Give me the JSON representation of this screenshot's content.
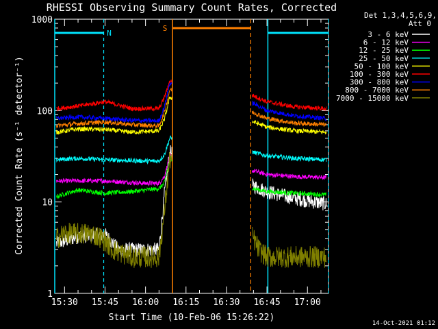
{
  "chart_data": {
    "type": "line",
    "title": "RHESSI Observing Summary Count Rates, Corrected",
    "xlabel": "Start Time (10-Feb-06 15:26:22)",
    "ylabel": "Corrected Count Rate (s⁻¹ detector⁻¹)",
    "footer": "14-Oct-2021 01:12",
    "log_y": true,
    "ylim": [
      1,
      1000
    ],
    "xlim_minutes": [
      15.43,
      17.13
    ],
    "xlim": [
      "15:26:22",
      "17:07:48"
    ],
    "x_ticks": [
      "15:30",
      "15:45",
      "16:00",
      "16:15",
      "16:30",
      "16:45",
      "17:00"
    ],
    "y_ticks": [
      "1",
      "10",
      "100",
      "1000"
    ],
    "legend": {
      "header": [
        "Det 1,3,4,5,6,9,",
        "Att 0"
      ],
      "position": "top-right"
    },
    "markers": {
      "N_label": "N",
      "S_label": "S",
      "n_color": "#00e5ff",
      "s_color": "#ff8000"
    },
    "night_intervals": [
      [
        "15:26:22",
        "15:44:30"
      ],
      [
        "16:45:20",
        "17:07:48"
      ]
    ],
    "saa_interval": [
      "16:10:00",
      "16:39:00"
    ],
    "gaps": [
      [
        "16:09:50",
        "16:39:30"
      ]
    ],
    "series": [
      {
        "name": "3 - 6 keV",
        "color": "#ffffff",
        "points": [
          [
            "15:27",
            3.5
          ],
          [
            "15:35",
            4.2
          ],
          [
            "15:45",
            4.4
          ],
          [
            "15:50",
            3
          ],
          [
            "16:00",
            3
          ],
          [
            "16:05",
            3
          ],
          [
            "16:07",
            12
          ],
          [
            "16:09",
            35
          ],
          [
            "16:40",
            15
          ],
          [
            "16:45",
            13
          ],
          [
            "16:55",
            11
          ],
          [
            "17:07",
            9.5
          ]
        ]
      },
      {
        "name": "6 - 12 keV",
        "color": "#ff00ff",
        "points": [
          [
            "15:27",
            17
          ],
          [
            "15:35",
            17
          ],
          [
            "15:45",
            17
          ],
          [
            "16:00",
            16
          ],
          [
            "16:05",
            16
          ],
          [
            "16:07",
            19
          ],
          [
            "16:09",
            32
          ],
          [
            "16:40",
            22
          ],
          [
            "16:45",
            20
          ],
          [
            "16:55",
            19
          ],
          [
            "17:07",
            18.5
          ]
        ]
      },
      {
        "name": "12 - 25 keV",
        "color": "#00ff00",
        "points": [
          [
            "15:27",
            11.5
          ],
          [
            "15:35",
            13.5
          ],
          [
            "15:45",
            12.5
          ],
          [
            "15:55",
            13
          ],
          [
            "16:05",
            14
          ],
          [
            "16:07",
            16
          ],
          [
            "16:09",
            30
          ],
          [
            "16:40",
            14
          ],
          [
            "16:45",
            13
          ],
          [
            "16:55",
            12.5
          ],
          [
            "17:07",
            12
          ]
        ]
      },
      {
        "name": "25 - 50 keV",
        "color": "#00ffff",
        "points": [
          [
            "15:27",
            29
          ],
          [
            "15:35",
            30
          ],
          [
            "15:45",
            29
          ],
          [
            "16:00",
            28
          ],
          [
            "16:05",
            28
          ],
          [
            "16:07",
            33
          ],
          [
            "16:09",
            50
          ],
          [
            "16:40",
            35
          ],
          [
            "16:45",
            32
          ],
          [
            "16:55",
            30
          ],
          [
            "17:07",
            29
          ]
        ]
      },
      {
        "name": "50 - 100 keV",
        "color": "#ffff00",
        "points": [
          [
            "15:27",
            58
          ],
          [
            "15:35",
            63
          ],
          [
            "15:45",
            62
          ],
          [
            "15:55",
            58
          ],
          [
            "16:05",
            60
          ],
          [
            "16:07",
            80
          ],
          [
            "16:09",
            140
          ],
          [
            "16:40",
            75
          ],
          [
            "16:45",
            66
          ],
          [
            "16:55",
            60
          ],
          [
            "17:07",
            58
          ]
        ]
      },
      {
        "name": "100 - 300 keV",
        "color": "#ff0000",
        "points": [
          [
            "15:27",
            105
          ],
          [
            "15:35",
            112
          ],
          [
            "15:45",
            125
          ],
          [
            "15:55",
            105
          ],
          [
            "16:05",
            105
          ],
          [
            "16:07",
            140
          ],
          [
            "16:09",
            210
          ],
          [
            "16:40",
            145
          ],
          [
            "16:45",
            125
          ],
          [
            "16:55",
            110
          ],
          [
            "17:07",
            105
          ]
        ]
      },
      {
        "name": "300 - 800 keV",
        "color": "#0000ff",
        "points": [
          [
            "15:27",
            82
          ],
          [
            "15:35",
            85
          ],
          [
            "15:45",
            82
          ],
          [
            "15:55",
            78
          ],
          [
            "16:05",
            77
          ],
          [
            "16:07",
            110
          ],
          [
            "16:09",
            200
          ],
          [
            "16:40",
            120
          ],
          [
            "16:45",
            100
          ],
          [
            "16:55",
            88
          ],
          [
            "17:07",
            82
          ]
        ]
      },
      {
        "name": "800 - 7000 keV",
        "color": "#ff8000",
        "points": [
          [
            "15:27",
            68
          ],
          [
            "15:35",
            72
          ],
          [
            "15:45",
            75
          ],
          [
            "15:55",
            70
          ],
          [
            "16:05",
            68
          ],
          [
            "16:07",
            95
          ],
          [
            "16:09",
            170
          ],
          [
            "16:40",
            95
          ],
          [
            "16:45",
            82
          ],
          [
            "16:55",
            73
          ],
          [
            "17:07",
            70
          ]
        ]
      },
      {
        "name": "7000 - 15000 keV",
        "color": "#808000",
        "points": [
          [
            "15:27",
            4
          ],
          [
            "15:30",
            4.5
          ],
          [
            "15:40",
            4.5
          ],
          [
            "15:44",
            4
          ],
          [
            "15:48",
            3
          ],
          [
            "15:55",
            2.5
          ],
          [
            "16:05",
            2.5
          ],
          [
            "16:07",
            8
          ],
          [
            "16:09",
            30
          ],
          [
            "16:40",
            4
          ],
          [
            "16:42",
            3
          ],
          [
            "16:45",
            2.5
          ],
          [
            "16:55",
            2.5
          ],
          [
            "17:07",
            2.5
          ]
        ]
      }
    ]
  }
}
